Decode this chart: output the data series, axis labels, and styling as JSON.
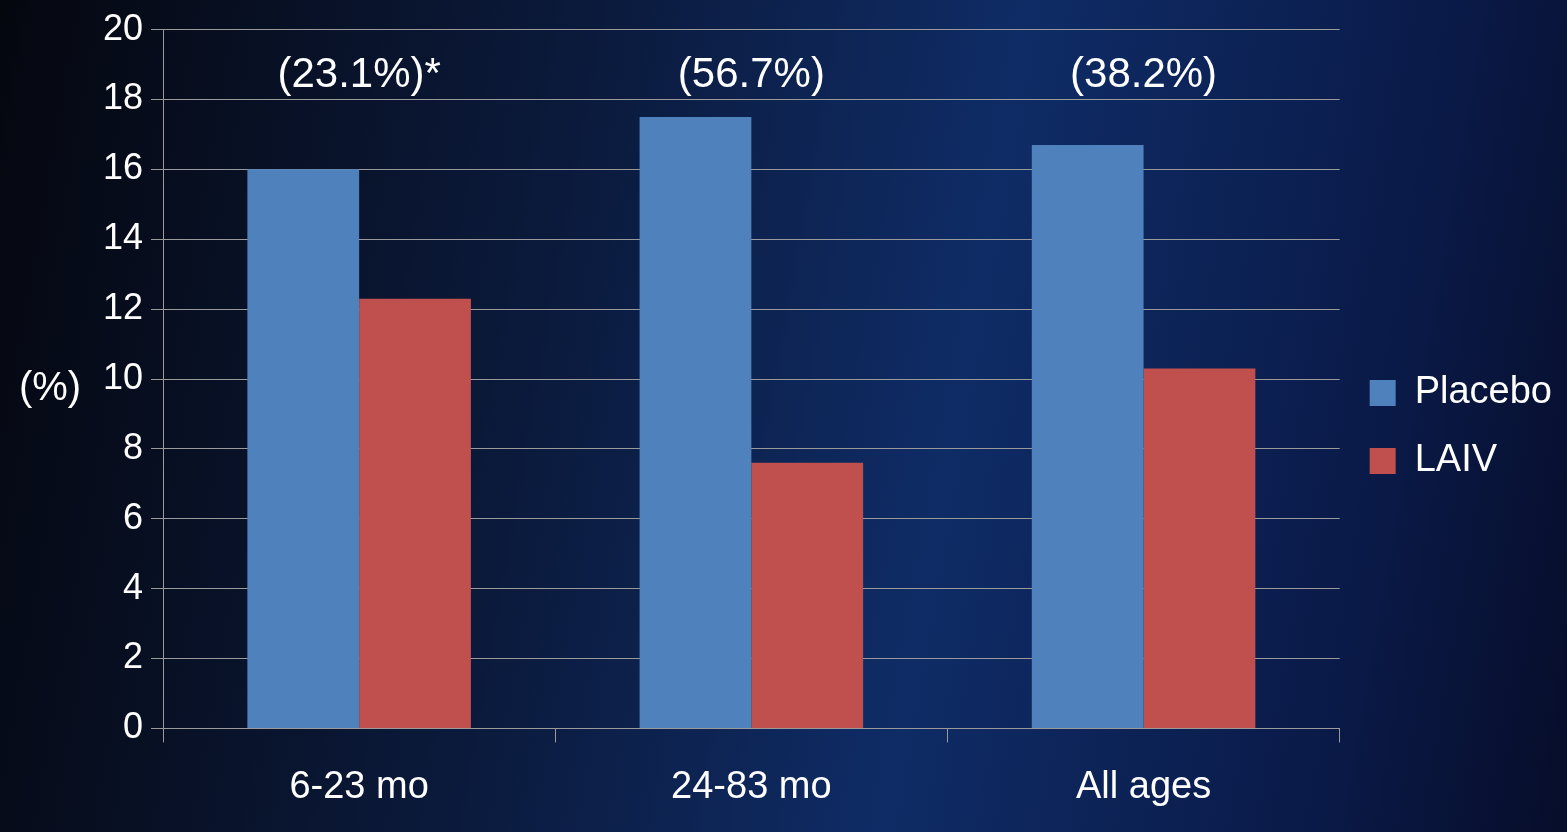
{
  "chart_data": {
    "type": "bar",
    "ylabel": "(%)",
    "categories": [
      "6-23 mo",
      "24-83 mo",
      "All ages"
    ],
    "series": [
      {
        "name": "Placebo",
        "color": "#4f81bd",
        "values": [
          16.0,
          17.5,
          16.7
        ]
      },
      {
        "name": "LAIV",
        "color": "#c0504d",
        "values": [
          12.3,
          7.6,
          10.3
        ]
      }
    ],
    "ylim": [
      0,
      20
    ],
    "yticks": [
      0,
      2,
      4,
      6,
      8,
      10,
      12,
      14,
      16,
      18,
      20
    ],
    "grid": "y",
    "legend": "right",
    "annotations": [
      "(23.1%)*",
      "(56.7%)",
      "(38.2%)"
    ]
  }
}
